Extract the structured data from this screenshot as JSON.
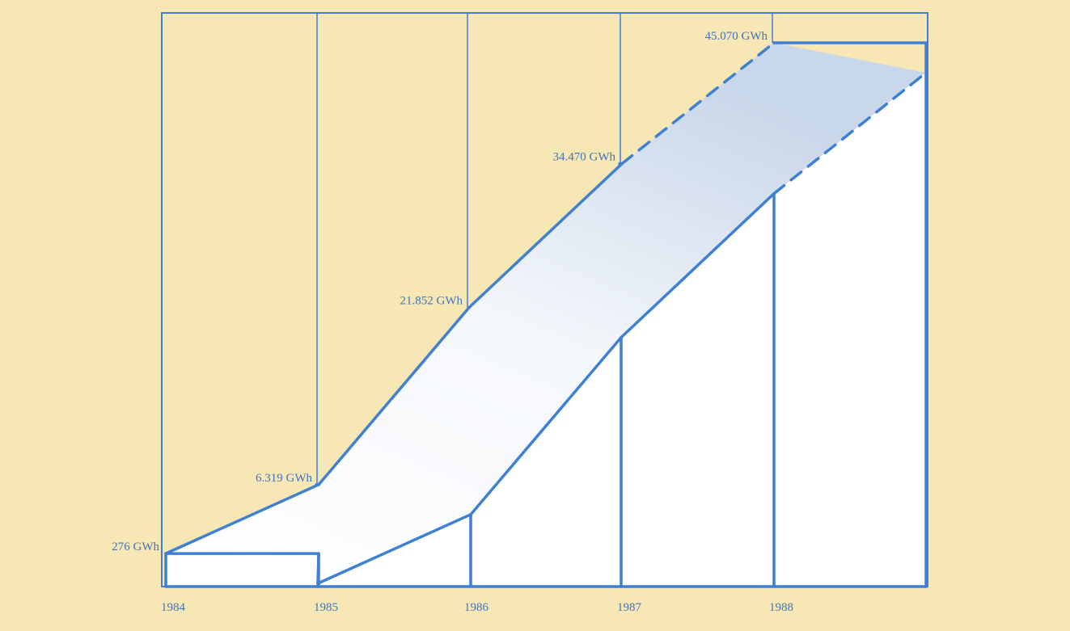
{
  "colors": {
    "background": "#f7e7b4",
    "line": "#3f80d6",
    "label": "#3f74bd",
    "fill": "#ffffff",
    "fill_shade": "#c9d7ea"
  },
  "chart_data": {
    "type": "area",
    "style": "3d-stepped-ribbon",
    "title": "",
    "xlabel": "",
    "ylabel": "",
    "unit": "GWh",
    "x": [
      "1984",
      "1985",
      "1986",
      "1987",
      "1988"
    ],
    "values": [
      276,
      6319,
      21852,
      34470,
      45070
    ],
    "value_labels": [
      "276 GWh",
      "6.319 GWh",
      "21.852 GWh",
      "34.470 GWh",
      "45.070 GWh"
    ],
    "projected_last": true,
    "ylim": [
      0,
      45070
    ],
    "grid": true,
    "legend": "none"
  }
}
